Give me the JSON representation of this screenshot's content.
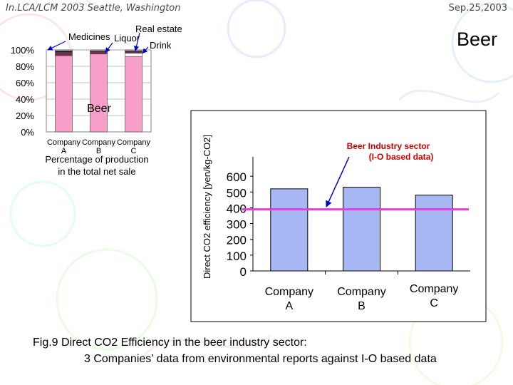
{
  "header": {
    "left": "In.LCA/LCM 2003  Seattle, Washington",
    "right": "Sep.25,2003"
  },
  "slide_title": "Beer",
  "caption": {
    "line1": "Fig.9 Direct CO2 Efficiency in the beer industry sector:",
    "line2": "3 Companies’ data from environmental reports against I-O based data"
  },
  "colors": {
    "pink": "#f79fc8",
    "dark": "#7a2a55",
    "bar_blue": "#a8b8f4",
    "io_line": "#e040e0",
    "arrow": "#0000cc"
  },
  "chart_data": [
    {
      "type": "bar",
      "stacked": true,
      "title": "Beer",
      "categories": [
        "Company A",
        "Company B",
        "Company C"
      ],
      "category_labels": [
        [
          "Company",
          "A"
        ],
        [
          "Company",
          "B"
        ],
        [
          "Company",
          "C"
        ]
      ],
      "series": [
        {
          "name": "Beer",
          "values": [
            93,
            95,
            92
          ]
        },
        {
          "name": "Drink",
          "values": [
            0,
            0,
            4
          ]
        },
        {
          "name": "Liquor",
          "values": [
            4,
            3,
            2
          ]
        },
        {
          "name": "Medicines",
          "values": [
            2,
            1,
            1
          ]
        },
        {
          "name": "Real estate",
          "values": [
            1,
            1,
            1
          ]
        }
      ],
      "ylim": [
        0,
        100
      ],
      "yticks": [
        "0%",
        "20%",
        "40%",
        "60%",
        "80%",
        "100%"
      ],
      "xlabel": "Percentage of production in the total net sale",
      "xlabel_lines": [
        "Percentage of production",
        "in the total net sale"
      ],
      "annotations": [
        "Medicines",
        "Liquor",
        "Real estate",
        "Drink"
      ]
    },
    {
      "type": "bar",
      "title": "",
      "categories": [
        "Company A",
        "Company B",
        "Company C"
      ],
      "category_labels": [
        [
          "Company",
          "A"
        ],
        [
          "Company",
          "B"
        ],
        [
          "Company",
          "C"
        ]
      ],
      "values": [
        520,
        530,
        480
      ],
      "reference_line": {
        "label_lines": [
          "Beer Industry sector",
          "(I-O based data)"
        ],
        "value": 390
      },
      "ylim": [
        0,
        700
      ],
      "yticks": [
        "0",
        "100",
        "200",
        "300",
        "400",
        "500",
        "600"
      ],
      "ylabel": "Direct CO2 efficiency [yen/kg-CO2]"
    }
  ]
}
